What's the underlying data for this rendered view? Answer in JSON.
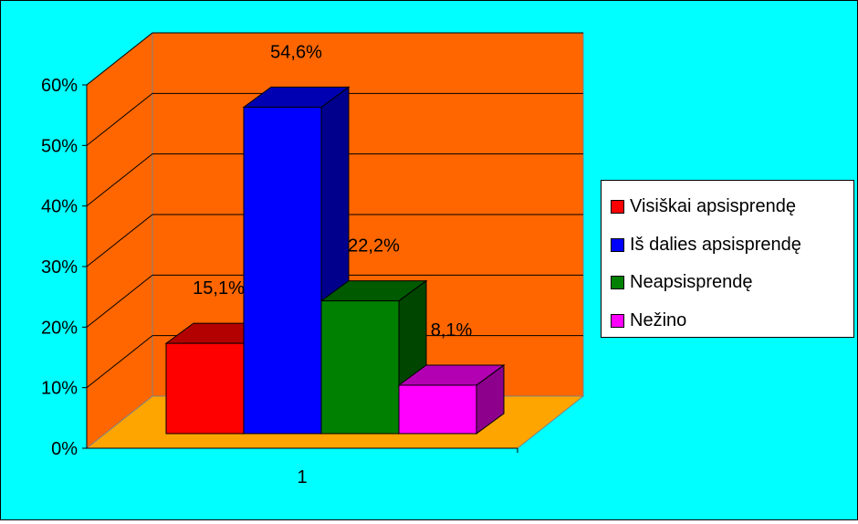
{
  "chart_data": {
    "type": "bar",
    "categories": [
      "1"
    ],
    "series": [
      {
        "name": "Visiškai apsisprendę",
        "values": [
          15.1
        ],
        "color": "#ff0000",
        "label": "15,1%"
      },
      {
        "name": "Iš dalies apsisprendę",
        "values": [
          54.6
        ],
        "color": "#0000ff",
        "label": "54,6%"
      },
      {
        "name": "Neapsisprendę",
        "values": [
          22.2
        ],
        "color": "#008000",
        "label": "22,2%"
      },
      {
        "name": "Nežino",
        "values": [
          8.1
        ],
        "color": "#ff00ff",
        "label": "8,1%"
      }
    ],
    "yticks": [
      "0%",
      "10%",
      "20%",
      "30%",
      "40%",
      "50%",
      "60%"
    ],
    "ylim": [
      0,
      60
    ],
    "y_unit": "%",
    "grid": true,
    "three_d": true,
    "legend_position": "right",
    "title": "",
    "xlabel": "",
    "ylabel": ""
  },
  "style": {
    "background": "#00ffff",
    "back_wall": "#ff6600",
    "floor": "#ffa500"
  }
}
